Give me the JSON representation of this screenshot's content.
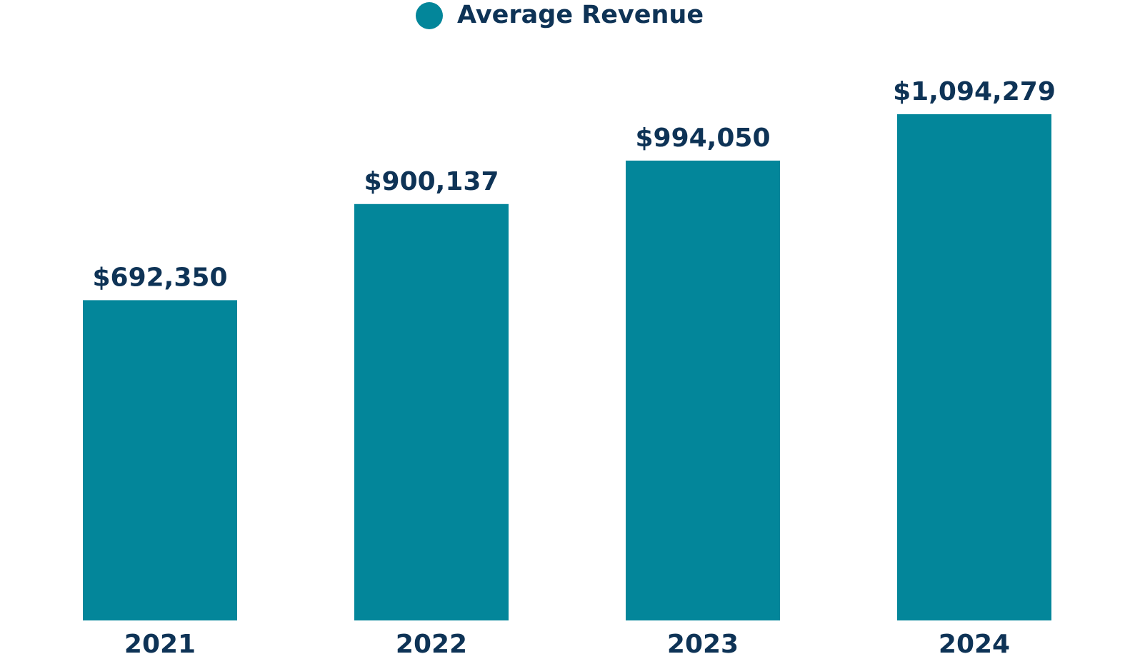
{
  "chart_data": {
    "type": "bar",
    "title": "",
    "xlabel": "",
    "ylabel": "",
    "categories": [
      "2021",
      "2022",
      "2023",
      "2024"
    ],
    "series": [
      {
        "name": "Average Revenue",
        "values": [
          692350,
          900137,
          994050,
          1094279
        ],
        "labels": [
          "$692,350",
          "$900,137",
          "$994,050",
          "$1,094,279"
        ]
      }
    ],
    "legend_position": "top-center",
    "grid": false,
    "colors": {
      "bar": "#03869a",
      "text": "#0e3356",
      "background": "#ffffff"
    }
  }
}
